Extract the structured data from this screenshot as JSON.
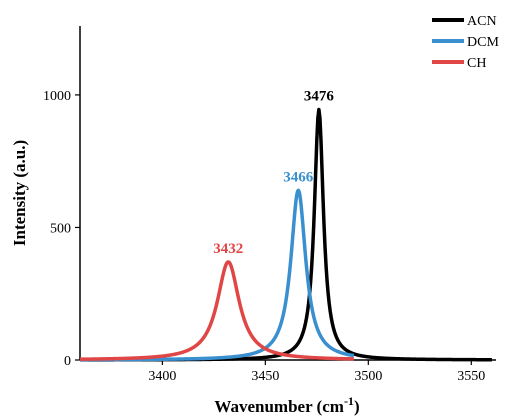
{
  "chart_data": {
    "type": "line",
    "xlabel": "Wavenumber (cm",
    "xlabel_sup": "-1",
    "xlabel_end": ")",
    "ylabel": "Intensity (a.u.)",
    "xlim": [
      3360,
      3562
    ],
    "ylim": [
      0,
      1260
    ],
    "x_ticks": [
      3400,
      3450,
      3500,
      3550
    ],
    "y_ticks": [
      0,
      500,
      1000
    ],
    "legend_position": "top-right",
    "series": [
      {
        "name": "ACN",
        "color": "#000000",
        "peak_x": 3476,
        "peak_y": 945,
        "hwhm": 2.7,
        "x_range": [
          3360,
          3560
        ],
        "peak_label": "3476"
      },
      {
        "name": "DCM",
        "color": "#3a8fcf",
        "peak_x": 3466,
        "peak_y": 640,
        "hwhm": 4.4,
        "x_range": [
          3360,
          3493
        ],
        "peak_label": "3466"
      },
      {
        "name": "CH",
        "color": "#e04646",
        "peak_x": 3432,
        "peak_y": 370,
        "hwhm": 6.5,
        "x_range": [
          3360,
          3493
        ],
        "peak_label": "3432"
      }
    ]
  }
}
